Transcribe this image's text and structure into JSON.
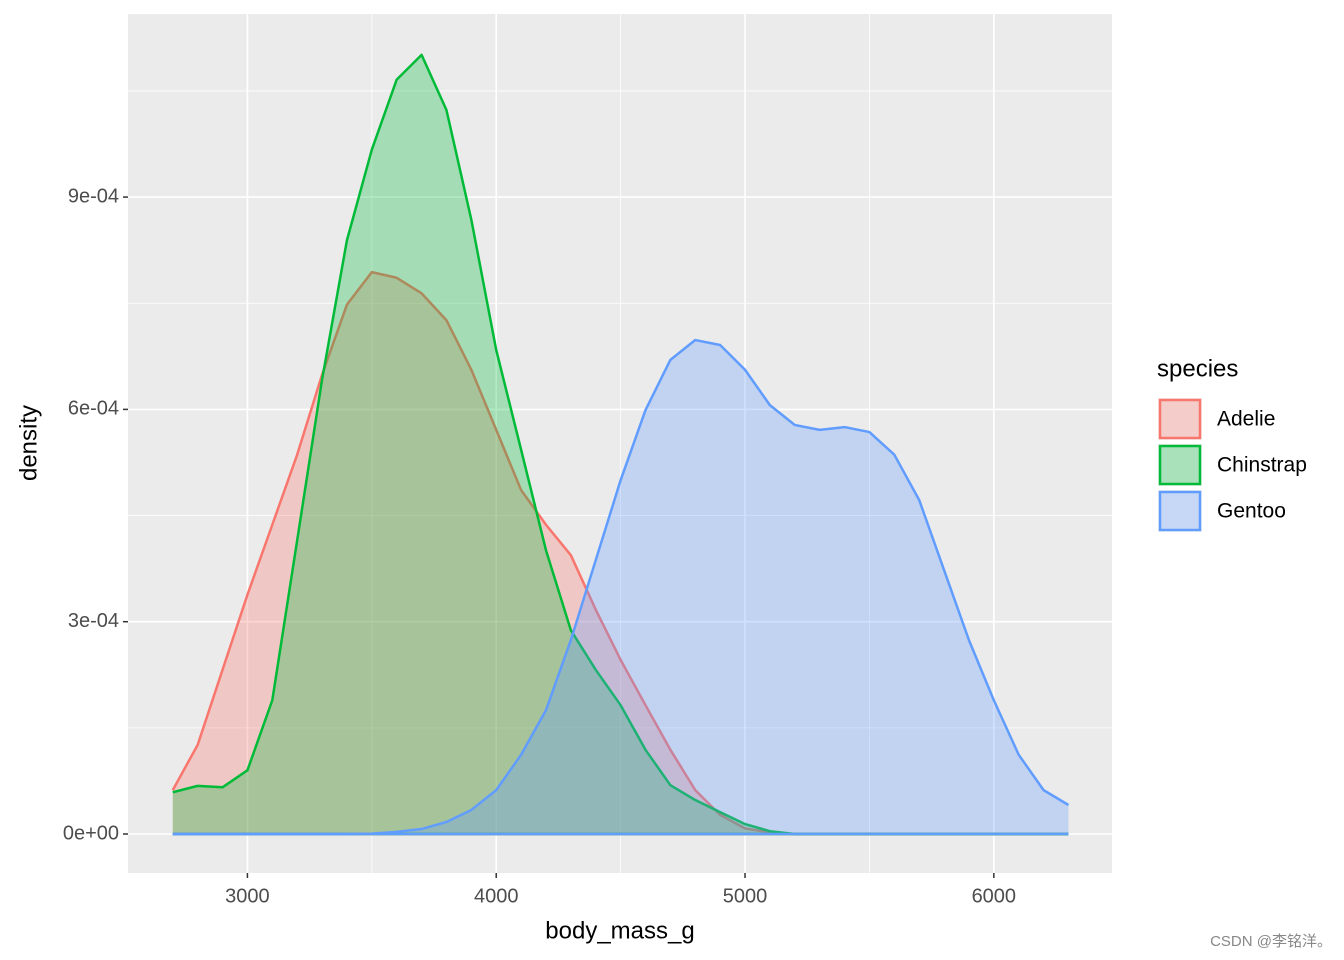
{
  "chart_data": {
    "type": "density",
    "x_label": "body_mass_g",
    "y_label": "density",
    "legend_title": "species",
    "legend_position": "right",
    "x": [
      2700,
      2800,
      2900,
      3000,
      3100,
      3200,
      3300,
      3400,
      3500,
      3600,
      3700,
      3800,
      3900,
      4000,
      4100,
      4200,
      4300,
      4400,
      4500,
      4600,
      4700,
      4800,
      4900,
      5000,
      5100,
      5200,
      5300,
      5400,
      5500,
      5600,
      5700,
      5800,
      5900,
      6000,
      6100,
      6200,
      6300
    ],
    "series": [
      {
        "name": "Adelie",
        "color": "#F8766D",
        "values": [
          6.2e-05,
          0.000126,
          0.000232,
          0.000338,
          0.000437,
          0.000536,
          0.000649,
          0.000748,
          0.000794,
          0.000786,
          0.000764,
          0.000726,
          0.000656,
          0.000571,
          0.000486,
          0.000437,
          0.000394,
          0.000317,
          0.000246,
          0.000182,
          0.000119,
          6.2e-05,
          2.7e-05,
          8e-06,
          2e-06,
          0,
          0,
          0,
          0,
          0,
          0,
          0,
          0,
          0,
          0,
          0,
          0
        ]
      },
      {
        "name": "Chinstrap",
        "color": "#00BA38",
        "values": [
          5.9e-05,
          6.8e-05,
          6.6e-05,
          9e-05,
          0.000189,
          0.000415,
          0.000642,
          0.000839,
          0.000967,
          0.001066,
          0.001101,
          0.001023,
          0.000868,
          0.000684,
          0.000543,
          0.000401,
          0.000288,
          0.000232,
          0.000182,
          0.000119,
          6.9e-05,
          4.8e-05,
          3.1e-05,
          1.4e-05,
          4e-06,
          0,
          0,
          0,
          0,
          0,
          0,
          0,
          0,
          0,
          0,
          0,
          0
        ]
      },
      {
        "name": "Gentoo",
        "color": "#619CFF",
        "values": [
          0,
          0,
          0,
          0,
          0,
          0,
          0,
          0,
          5e-07,
          3e-06,
          7e-06,
          1.7e-05,
          3.4e-05,
          6.2e-05,
          0.000112,
          0.000175,
          0.000274,
          0.000387,
          0.0005,
          0.000599,
          0.00067,
          0.000698,
          0.000691,
          0.000656,
          0.000606,
          0.000578,
          0.000571,
          0.000575,
          0.000568,
          0.000536,
          0.000472,
          0.000373,
          0.000274,
          0.000189,
          0.000112,
          6.2e-05,
          4.1e-05
        ]
      }
    ],
    "fill_opacity": 0.3,
    "xlim": [
      2520,
      6475
    ],
    "ylim": [
      -5.51e-05,
      0.0011587
    ],
    "xticks": [
      3000,
      4000,
      5000,
      6000
    ],
    "yticks": [
      {
        "value": 0,
        "label": "0e+00"
      },
      {
        "value": 0.0003,
        "label": "3e-04"
      },
      {
        "value": 0.0006,
        "label": "6e-04"
      },
      {
        "value": 0.0009,
        "label": "9e-04"
      }
    ],
    "x_minor_grid": [
      3500,
      4500,
      5500
    ],
    "y_minor_grid": [
      0.00015,
      0.00045,
      0.00075,
      0.00105
    ],
    "grid": true,
    "watermark": "CSDN @李铭洋。"
  }
}
